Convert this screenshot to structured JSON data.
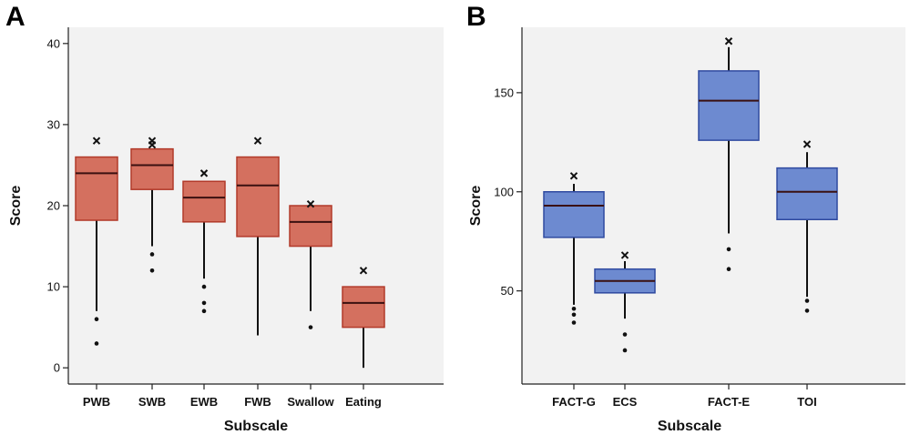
{
  "chart_data": [
    {
      "panel_label": "A",
      "type": "boxplot",
      "title": "",
      "xlabel": "Subscale",
      "ylabel": "Score",
      "ylim": [
        -2,
        42
      ],
      "yticks": [
        0,
        10,
        20,
        30,
        40
      ],
      "ytick_labels": [
        "0",
        "10",
        "20",
        "30",
        "40"
      ],
      "box_color": "#d4705f",
      "box_edge_color": "#b23a2a",
      "background_color": "#f2f2f2",
      "categories": [
        "PWB",
        "SWB",
        "EWB",
        "FWB",
        "Swallow",
        "Eating"
      ],
      "boxes": [
        {
          "name": "PWB",
          "whisker_low": 7,
          "q1": 18.2,
          "median": 24,
          "q3": 26,
          "whisker_high": 26,
          "outliers": [
            6,
            3
          ],
          "extremes": [
            28
          ]
        },
        {
          "name": "SWB",
          "whisker_low": 15,
          "q1": 22,
          "median": 25,
          "q3": 27,
          "whisker_high": 27,
          "outliers": [
            14,
            12
          ],
          "extremes": [
            28,
            27.5
          ]
        },
        {
          "name": "EWB",
          "whisker_low": 11,
          "q1": 18,
          "median": 21,
          "q3": 23,
          "whisker_high": 23,
          "outliers": [
            10,
            8,
            7
          ],
          "extremes": [
            24
          ]
        },
        {
          "name": "FWB",
          "whisker_low": 4,
          "q1": 16.2,
          "median": 22.5,
          "q3": 26,
          "whisker_high": 26,
          "outliers": [],
          "extremes": [
            28
          ]
        },
        {
          "name": "Swallow",
          "whisker_low": 7,
          "q1": 15,
          "median": 18,
          "q3": 20,
          "whisker_high": 20,
          "outliers": [
            5
          ],
          "extremes": [
            20.2
          ]
        },
        {
          "name": "Eating",
          "whisker_low": 0,
          "q1": 5,
          "median": 8,
          "q3": 10,
          "whisker_high": 10,
          "outliers": [],
          "extremes": [
            12
          ]
        }
      ]
    },
    {
      "panel_label": "B",
      "type": "boxplot",
      "title": "",
      "xlabel": "Subscale",
      "ylabel": "Score",
      "ylim": [
        3,
        183
      ],
      "yticks": [
        50,
        100,
        150
      ],
      "ytick_labels": [
        "50",
        "100",
        "150"
      ],
      "box_color": "#6d8ad0",
      "box_edge_color": "#2f4aa0",
      "background_color": "#f2f2f2",
      "categories": [
        "FACT-G",
        "ECS",
        "FACT-E",
        "TOI"
      ],
      "boxes": [
        {
          "name": "FACT-G",
          "whisker_low": 43,
          "q1": 77,
          "median": 93,
          "q3": 100,
          "whisker_high": 104,
          "outliers": [
            41,
            38,
            34
          ],
          "extremes": [
            108
          ]
        },
        {
          "name": "ECS",
          "whisker_low": 36,
          "q1": 49,
          "median": 55,
          "q3": 61,
          "whisker_high": 65,
          "outliers": [
            28,
            20
          ],
          "extremes": [
            68
          ]
        },
        {
          "name": "FACT-E",
          "whisker_low": 79,
          "q1": 126,
          "median": 146,
          "q3": 161,
          "whisker_high": 173,
          "outliers": [
            71,
            61
          ],
          "extremes": [
            176
          ]
        },
        {
          "name": "TOI",
          "whisker_low": 47,
          "q1": 86,
          "median": 100,
          "q3": 112,
          "whisker_high": 120,
          "outliers": [
            45,
            40
          ],
          "extremes": [
            124
          ]
        }
      ]
    }
  ]
}
